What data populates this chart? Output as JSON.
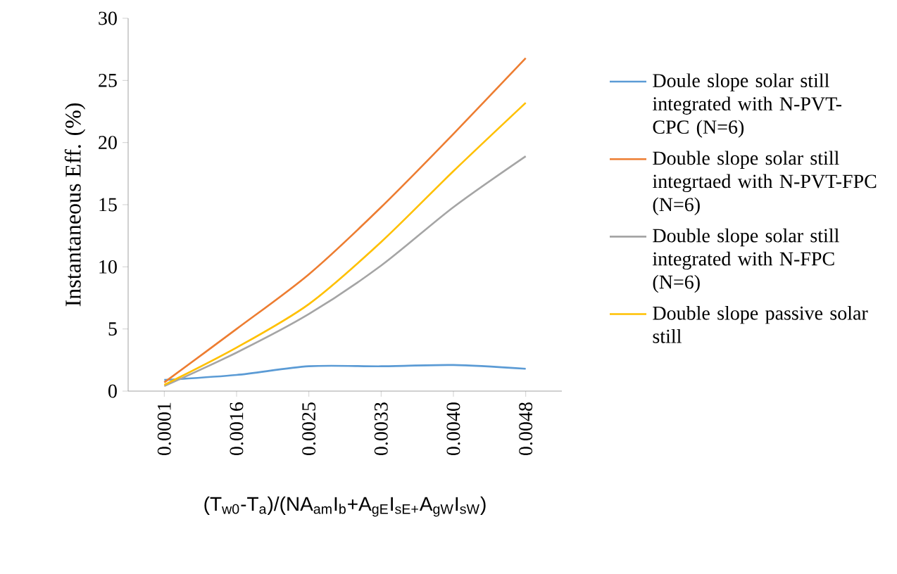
{
  "chart_data": {
    "type": "line",
    "ylabel": "Instantaneous Eff. (%)",
    "xlabel": "(T$_{w0}$-T$_{a}$)/(NA$_{am}$I$_{b}$+A$_{gE}$I$_{sE+}$A$_{gW}$I$_{sW}$)",
    "categories": [
      "0.0001",
      "0.0016",
      "0.0025",
      "0.0033",
      "0.0040",
      "0.0048"
    ],
    "series": [
      {
        "name": "Doule slope solar still integrated with N-PVT-CPC (N=6)",
        "color": "#5b9bd5",
        "values": [
          0.9,
          1.3,
          2.0,
          2.0,
          2.1,
          1.8
        ]
      },
      {
        "name": "Double slope solar still integrtaed with N-PVT-FPC (N=6)",
        "color": "#ed7d31",
        "values": [
          0.7,
          5.0,
          9.4,
          14.8,
          20.7,
          26.8
        ]
      },
      {
        "name": "Double slope solar still integrated with N-FPC (N=6)",
        "color": "#a5a5a5",
        "values": [
          0.4,
          3.1,
          6.2,
          10.1,
          14.8,
          18.9
        ]
      },
      {
        "name": "Double slope passive solar still",
        "color": "#ffc000",
        "values": [
          0.5,
          3.5,
          7.0,
          12.0,
          17.7,
          23.2
        ]
      }
    ],
    "ylim": [
      0,
      30
    ],
    "yticks": [
      0,
      5,
      10,
      15,
      20,
      25,
      30
    ],
    "legend": "right"
  }
}
